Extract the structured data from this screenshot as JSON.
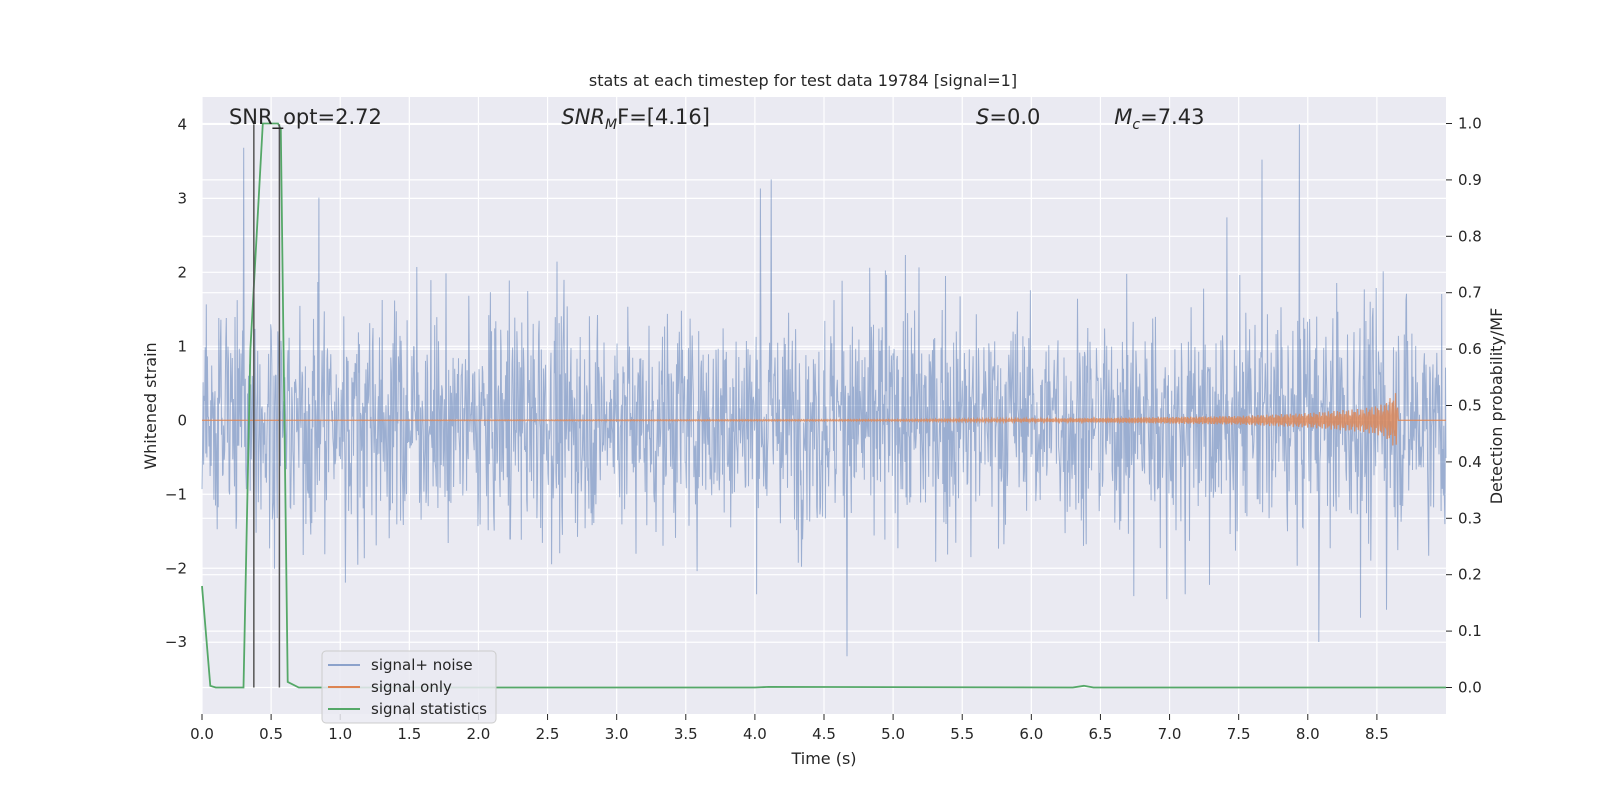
{
  "chart_data": {
    "type": "line",
    "title": "stats at each timestep for test data 19784 [signal=1]",
    "xlabel": "Time (s)",
    "ylabel": "Whitened strain",
    "y2label": "Detection probability/MF",
    "xlim": [
      0.0,
      9.0
    ],
    "ylim": [
      -3.97,
      4.37
    ],
    "y2lim": [
      -0.047,
      1.047
    ],
    "xticks": [
      "0.0",
      "0.5",
      "1.0",
      "1.5",
      "2.0",
      "2.5",
      "3.0",
      "3.5",
      "4.0",
      "4.5",
      "5.0",
      "5.5",
      "6.0",
      "6.5",
      "7.0",
      "7.5",
      "8.0",
      "8.5"
    ],
    "yticks": [
      "4",
      "3",
      "2",
      "1",
      "0",
      "−1",
      "−2",
      "−3"
    ],
    "y2ticks": [
      "1.0",
      "0.9",
      "0.8",
      "0.7",
      "0.6",
      "0.5",
      "0.4",
      "0.3",
      "0.2",
      "0.1",
      "0.0"
    ],
    "grid": true,
    "legend_position": "lower-left",
    "annotations": [
      {
        "prefix": "SNR_opt=2.72",
        "sub": "",
        "suffix": ""
      },
      {
        "prefix": "SNR",
        "sub": "M",
        "suffix": "F=[4.16]"
      },
      {
        "prefix": "S",
        "sub": "",
        "suffix": "=0.0"
      },
      {
        "prefix": "M",
        "sub": "c",
        "suffix": "=7.43"
      }
    ],
    "series": [
      {
        "name": "signal+ noise",
        "color": "#4c72b0",
        "axis": "left",
        "description_stats": {
          "typical_range": [
            -1.3,
            1.7
          ],
          "max": 4.0,
          "min": -3.65
        }
      },
      {
        "name": "signal only",
        "color": "#dd8452",
        "axis": "left",
        "x": [
          0.0,
          5.0,
          6.5,
          7.5,
          8.0,
          8.4,
          8.55,
          8.62,
          8.65
        ],
        "amplitude": [
          0.0,
          0.01,
          0.03,
          0.06,
          0.1,
          0.16,
          0.22,
          0.35,
          0.4
        ]
      },
      {
        "name": "signal statistics",
        "color": "#55a868",
        "axis": "right",
        "x": [
          0.0,
          0.06,
          0.1,
          0.2,
          0.3,
          0.35,
          0.44,
          0.55,
          0.57,
          0.62,
          0.7,
          4.0,
          4.1,
          6.3,
          6.38,
          6.45,
          9.0
        ],
        "y": [
          0.18,
          0.003,
          0.0,
          0.0,
          0.0,
          0.6,
          1.0,
          1.0,
          0.99,
          0.01,
          0.0,
          0.0,
          0.001,
          0.0,
          0.003,
          0.0,
          0.0
        ]
      }
    ],
    "vertical_markers": [
      0.375,
      0.56
    ]
  }
}
